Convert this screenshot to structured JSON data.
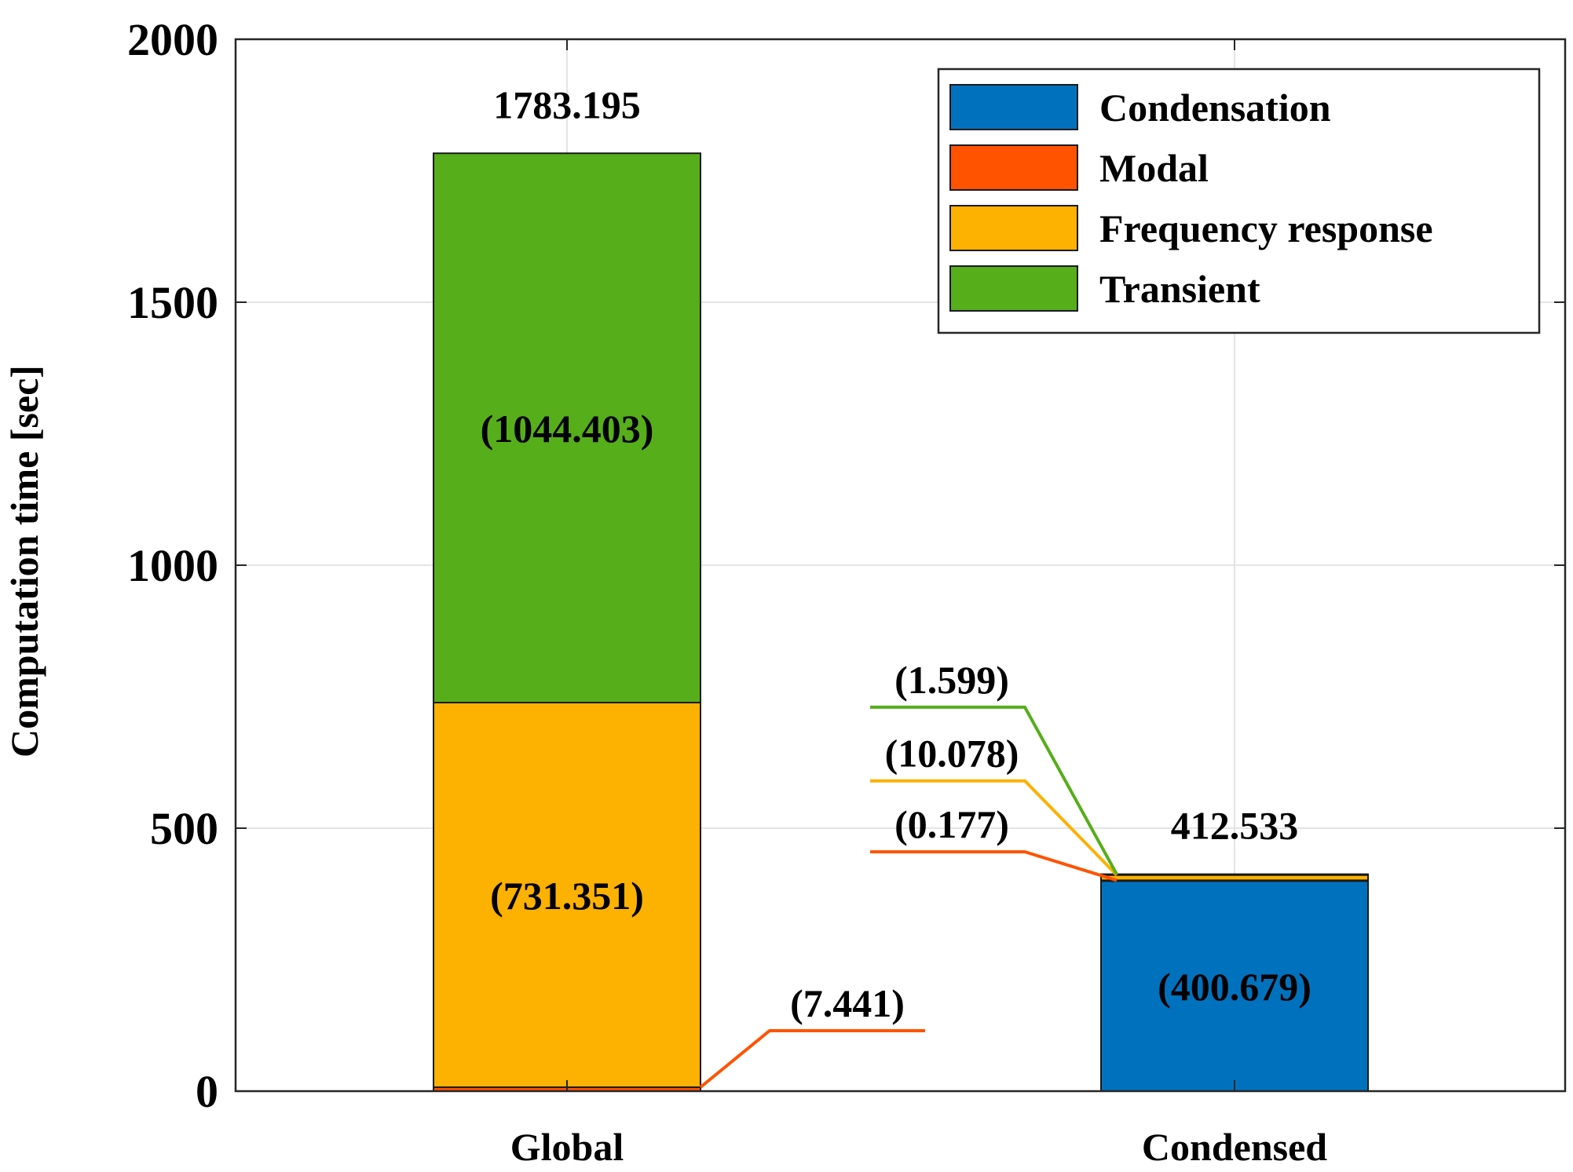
{
  "colors": {
    "Condensation": "#0072BD",
    "Modal": "#FF5300",
    "Frequency response": "#FDB100",
    "Transient": "#56AE1B",
    "grid": "#e4e4e4",
    "axis": "#262626"
  },
  "chart_data": {
    "type": "bar",
    "stacked": true,
    "title": "",
    "xlabel": "",
    "ylabel": "Computation time [sec]",
    "ylim": [
      0,
      2000
    ],
    "yticks": [
      0,
      500,
      1000,
      1500,
      2000
    ],
    "ytick_labels": [
      "0",
      "500",
      "1000",
      "1500",
      "2000"
    ],
    "grid": true,
    "legend_position": "top-right",
    "categories": [
      "Global",
      "Condensed"
    ],
    "series": [
      {
        "name": "Condensation",
        "values": [
          0,
          400.679
        ]
      },
      {
        "name": "Modal",
        "values": [
          7.441,
          0.177
        ]
      },
      {
        "name": "Frequency response",
        "values": [
          731.351,
          10.078
        ]
      },
      {
        "name": "Transient",
        "values": [
          1044.403,
          1.599
        ]
      }
    ],
    "totals": [
      {
        "category": "Global",
        "value": 1783.195,
        "label": "1783.195"
      },
      {
        "category": "Condensed",
        "value": 412.533,
        "label": "412.533"
      }
    ],
    "segment_labels": [
      {
        "category": "Global",
        "series": "Transient",
        "label": "(1044.403)"
      },
      {
        "category": "Global",
        "series": "Frequency response",
        "label": "(731.351)"
      },
      {
        "category": "Condensed",
        "series": "Condensation",
        "label": "(400.679)"
      }
    ],
    "callouts": [
      {
        "category": "Global",
        "series": "Modal",
        "label": "(7.441)",
        "label_y": 115
      },
      {
        "category": "Condensed",
        "series": "Modal",
        "label": "(0.177)",
        "label_y": 455
      },
      {
        "category": "Condensed",
        "series": "Frequency response",
        "label": "(10.078)",
        "label_y": 590
      },
      {
        "category": "Condensed",
        "series": "Transient",
        "label": "(1.599)",
        "label_y": 730
      }
    ]
  }
}
